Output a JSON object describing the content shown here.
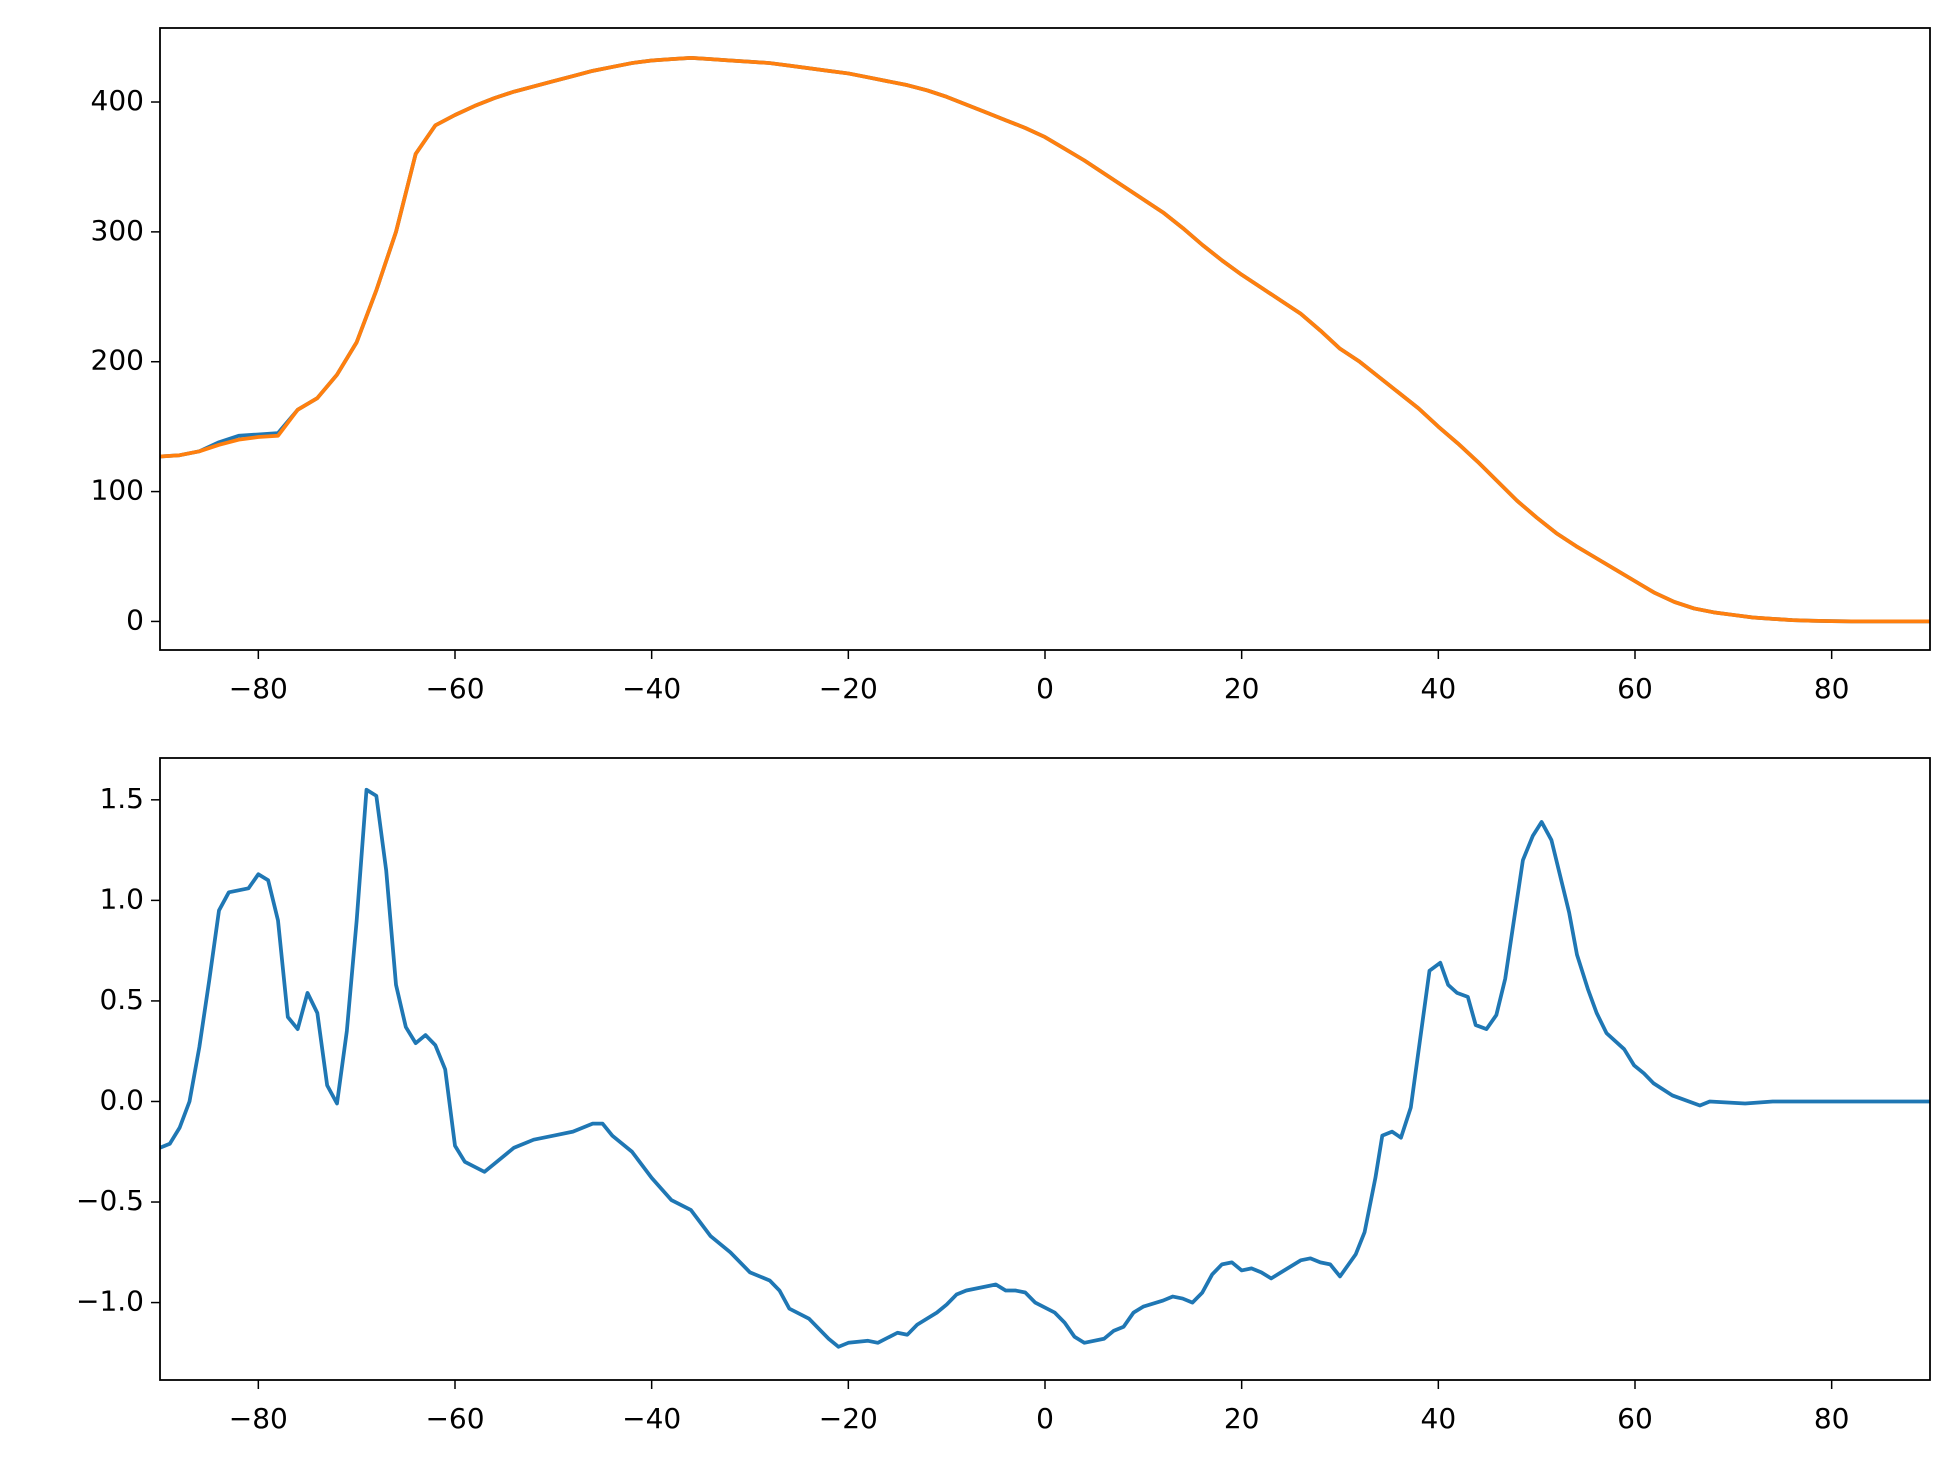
{
  "chart_data": [
    {
      "type": "line",
      "x": [
        -90,
        -88,
        -86,
        -84,
        -82,
        -80,
        -78,
        -76,
        -74,
        -72,
        -70,
        -68,
        -66,
        -64,
        -62,
        -60,
        -58,
        -56,
        -54,
        -52,
        -50,
        -48,
        -46,
        -44,
        -42,
        -40,
        -38,
        -36,
        -34,
        -32,
        -30,
        -28,
        -26,
        -24,
        -22,
        -20,
        -18,
        -16,
        -14,
        -12,
        -10,
        -8,
        -6,
        -4,
        -2,
        0,
        2,
        4,
        6,
        8,
        10,
        12,
        14,
        16,
        18,
        20,
        22,
        24,
        26,
        28,
        30,
        32,
        34,
        36,
        38,
        40,
        42,
        44,
        46,
        48,
        50,
        52,
        54,
        56,
        58,
        60,
        62,
        64,
        66,
        68,
        70,
        72,
        74,
        76,
        78,
        80,
        82,
        84,
        86,
        88,
        90
      ],
      "series": [
        {
          "color": "#1f77b4",
          "values": [
            127,
            128,
            131,
            138,
            143,
            144,
            145,
            163,
            172,
            190,
            215,
            255,
            300,
            360,
            382,
            390,
            397,
            403,
            408,
            412,
            416,
            420,
            424,
            427,
            430,
            432,
            433,
            434,
            433,
            432,
            431,
            430,
            428,
            426,
            424,
            422,
            419,
            416,
            413,
            409,
            404,
            398,
            392,
            386,
            380,
            373,
            364,
            355,
            345,
            335,
            325,
            315,
            303,
            290,
            278,
            267,
            257,
            247,
            237,
            224,
            210,
            200,
            188,
            176,
            164,
            150,
            137,
            123,
            108,
            93,
            80,
            68,
            58,
            49,
            40,
            31,
            22,
            15,
            10,
            7,
            5,
            3,
            2,
            1,
            0.5,
            0.2,
            0,
            0,
            0,
            0,
            0
          ]
        },
        {
          "color": "#ff7f0e",
          "values": [
            127,
            128,
            131,
            136,
            140,
            142,
            143,
            163,
            172,
            190,
            215,
            255,
            300,
            360,
            382,
            390,
            397,
            403,
            408,
            412,
            416,
            420,
            424,
            427,
            430,
            432,
            433,
            434,
            433,
            432,
            431,
            430,
            428,
            426,
            424,
            422,
            419,
            416,
            413,
            409,
            404,
            398,
            392,
            386,
            380,
            373,
            364,
            355,
            345,
            335,
            325,
            315,
            303,
            290,
            278,
            267,
            257,
            247,
            237,
            224,
            210,
            200,
            188,
            176,
            164,
            150,
            137,
            123,
            108,
            93,
            80,
            68,
            58,
            49,
            40,
            31,
            22,
            15,
            10,
            7,
            5,
            3,
            2,
            1,
            0.5,
            0.2,
            0,
            0,
            0,
            0,
            0
          ]
        }
      ],
      "xlim": [
        -90,
        90
      ],
      "ylim": [
        -22,
        457
      ],
      "xticks": [
        {
          "value": -80,
          "label": "−80"
        },
        {
          "value": -60,
          "label": "−60"
        },
        {
          "value": -40,
          "label": "−40"
        },
        {
          "value": -20,
          "label": "−20"
        },
        0,
        20,
        40,
        60,
        80
      ],
      "yticks": [
        0,
        100,
        200,
        300,
        400
      ]
    },
    {
      "type": "line",
      "x": [
        -90,
        -89,
        -88,
        -87,
        -86,
        -85,
        -84,
        -83,
        -82,
        -81,
        -80,
        -79,
        -78,
        -77,
        -76,
        -75,
        -74,
        -73,
        -72,
        -71,
        -70,
        -69,
        -68,
        -67,
        -66,
        -65,
        -64,
        -63,
        -62,
        -61,
        -60,
        -59,
        -57,
        -56,
        -54,
        -52,
        -50,
        -48,
        -46,
        -45,
        -44,
        -42,
        -40,
        -38,
        -36,
        -34,
        -32,
        -30,
        -28,
        -27,
        -26,
        -24,
        -22,
        -21,
        -20,
        -18,
        -17,
        -15,
        -14,
        -13,
        -11,
        -10,
        -9,
        -8,
        -6,
        -5,
        -4,
        -3,
        -2,
        -1,
        1,
        2,
        3,
        4,
        6,
        7,
        8,
        9,
        10,
        12,
        13,
        14,
        15,
        16,
        17,
        18,
        19,
        20,
        21,
        22,
        23,
        24,
        26,
        27,
        28,
        29,
        30,
        31.6,
        32.5,
        33.6,
        34.3,
        35.3,
        36.2,
        37.2,
        39.1,
        40.2,
        41,
        41.9,
        43,
        43.8,
        44.9,
        45.9,
        46.8,
        48.6,
        49.6,
        50.5,
        51.5,
        53.3,
        54.1,
        55.2,
        56.1,
        57.1,
        58.9,
        59.9,
        60.9,
        61.9,
        63.8,
        66.6,
        67.6,
        71.2,
        74,
        80,
        85,
        90
      ],
      "series": [
        {
          "color": "#1f77b4",
          "values": [
            -0.23,
            -0.21,
            -0.13,
            0.0,
            0.27,
            0.6,
            0.95,
            1.04,
            1.05,
            1.06,
            1.13,
            1.1,
            0.9,
            0.42,
            0.36,
            0.54,
            0.44,
            0.08,
            -0.01,
            0.35,
            0.9,
            1.55,
            1.52,
            1.15,
            0.58,
            0.37,
            0.29,
            0.33,
            0.28,
            0.16,
            -0.22,
            -0.3,
            -0.35,
            -0.31,
            -0.23,
            -0.19,
            -0.17,
            -0.15,
            -0.11,
            -0.11,
            -0.17,
            -0.25,
            -0.38,
            -0.49,
            -0.54,
            -0.67,
            -0.75,
            -0.85,
            -0.89,
            -0.94,
            -1.03,
            -1.08,
            -1.18,
            -1.22,
            -1.2,
            -1.19,
            -1.2,
            -1.15,
            -1.16,
            -1.11,
            -1.05,
            -1.01,
            -0.96,
            -0.94,
            -0.92,
            -0.91,
            -0.94,
            -0.94,
            -0.95,
            -1.0,
            -1.05,
            -1.1,
            -1.17,
            -1.2,
            -1.18,
            -1.14,
            -1.12,
            -1.05,
            -1.02,
            -0.99,
            -0.97,
            -0.98,
            -1.0,
            -0.95,
            -0.86,
            -0.81,
            -0.8,
            -0.84,
            -0.83,
            -0.85,
            -0.88,
            -0.85,
            -0.79,
            -0.78,
            -0.8,
            -0.81,
            -0.87,
            -0.76,
            -0.65,
            -0.38,
            -0.17,
            -0.15,
            -0.18,
            -0.03,
            0.65,
            0.69,
            0.58,
            0.54,
            0.52,
            0.38,
            0.36,
            0.43,
            0.61,
            1.2,
            1.32,
            1.39,
            1.3,
            0.94,
            0.73,
            0.56,
            0.44,
            0.34,
            0.26,
            0.18,
            0.14,
            0.09,
            0.03,
            -0.02,
            0.0,
            -0.01,
            0.0,
            0.0,
            0.0,
            0.0
          ]
        }
      ],
      "xlim": [
        -90,
        90
      ],
      "ylim": [
        -1.385,
        1.708
      ],
      "xticks": [
        {
          "value": -80,
          "label": "−80"
        },
        {
          "value": -60,
          "label": "−60"
        },
        {
          "value": -40,
          "label": "−40"
        },
        {
          "value": -20,
          "label": "−20"
        },
        0,
        20,
        40,
        60,
        80
      ],
      "yticks": [
        {
          "value": -1,
          "label": "−1.0"
        },
        {
          "value": -0.5,
          "label": "−0.5"
        },
        {
          "value": 0,
          "label": "0.0"
        },
        0.5,
        {
          "value": 1,
          "label": "1.0"
        },
        1.5
      ]
    }
  ]
}
